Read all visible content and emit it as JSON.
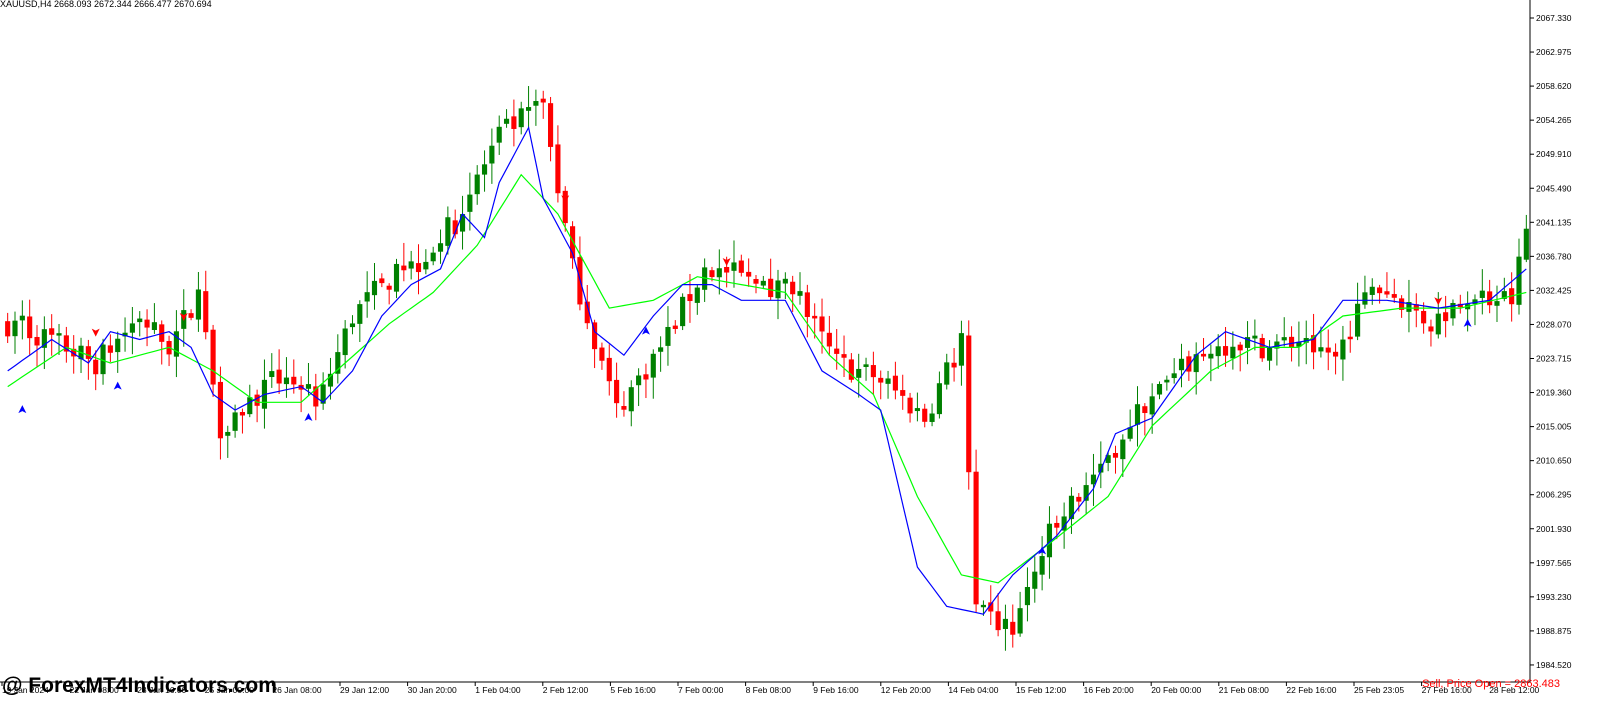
{
  "header": {
    "ohlc_text": "XAUUSD,H4  2668.093 2672.344 2666.477 2670.694"
  },
  "watermark": "@ ForexMT4Indicators.com",
  "status": "Sell, Price Open = 2863.483",
  "colors": {
    "bull": "#008000",
    "bear": "#ff0000",
    "fast_ma": "#0000ff",
    "slow_ma": "#00ff00",
    "buy_arrow": "#0000ff",
    "sell_arrow": "#ff0000",
    "axis": "#000000",
    "background": "#ffffff"
  },
  "chart_data": {
    "type": "candlestick",
    "symbol": "XAUUSD",
    "timeframe": "H4",
    "ylim": [
      1983,
      2069
    ],
    "y_ticks": [
      "2067.330",
      "2062.975",
      "2058.620",
      "2054.265",
      "2049.910",
      "2045.490",
      "2041.135",
      "2036.780",
      "2032.425",
      "2028.070",
      "2023.715",
      "2019.360",
      "2015.005",
      "2010.650",
      "2006.295",
      "2001.930",
      "1997.565",
      "1993.230",
      "1988.875",
      "1984.520"
    ],
    "x_ticks": [
      "19 Jan 2024",
      "22 Jan 08:00",
      "23 Jan 16:00",
      "25 Jan 00:00",
      "26 Jan 08:00",
      "29 Jan 12:00",
      "30 Jan 20:00",
      "1 Feb 04:00",
      "2 Feb 12:00",
      "5 Feb 16:00",
      "7 Feb 00:00",
      "8 Feb 08:00",
      "9 Feb 16:00",
      "12 Feb 20:00",
      "14 Feb 04:00",
      "15 Feb 12:00",
      "16 Feb 20:00",
      "20 Feb 00:00",
      "21 Feb 08:00",
      "22 Feb 16:00",
      "25 Feb 23:05",
      "27 Feb 16:00",
      "28 Feb 12:00"
    ],
    "close_anchors": [
      [
        0,
        2029
      ],
      [
        6,
        2027
      ],
      [
        12,
        2024
      ],
      [
        18,
        2030
      ],
      [
        22,
        2026
      ],
      [
        26,
        2033
      ],
      [
        29,
        2016
      ],
      [
        33,
        2019
      ],
      [
        38,
        2023
      ],
      [
        42,
        2018
      ],
      [
        47,
        2030
      ],
      [
        51,
        2034
      ],
      [
        56,
        2037
      ],
      [
        61,
        2042
      ],
      [
        67,
        2053
      ],
      [
        73,
        2057
      ],
      [
        77,
        2036
      ],
      [
        83,
        2018
      ],
      [
        89,
        2026
      ],
      [
        95,
        2036
      ],
      [
        101,
        2035
      ],
      [
        107,
        2033
      ],
      [
        113,
        2024
      ],
      [
        119,
        2022
      ],
      [
        125,
        2017
      ],
      [
        130,
        2027
      ],
      [
        132,
        1992
      ],
      [
        137,
        1990
      ],
      [
        142,
        2002
      ],
      [
        148,
        2010
      ],
      [
        155,
        2019
      ],
      [
        161,
        2024
      ],
      [
        167,
        2027
      ],
      [
        172,
        2026
      ],
      [
        176,
        2027
      ],
      [
        181,
        2025
      ],
      [
        186,
        2034
      ],
      [
        190,
        2032
      ],
      [
        194,
        2029
      ],
      [
        199,
        2033
      ],
      [
        205,
        2032
      ],
      [
        207,
        2041
      ]
    ],
    "fast_ma_anchors": [
      [
        0,
        2023
      ],
      [
        6,
        2027
      ],
      [
        11,
        2024
      ],
      [
        14,
        2028
      ],
      [
        18,
        2027
      ],
      [
        22,
        2028
      ],
      [
        25,
        2026
      ],
      [
        28,
        2020
      ],
      [
        31,
        2018
      ],
      [
        35,
        2020
      ],
      [
        40,
        2021
      ],
      [
        43,
        2019
      ],
      [
        47,
        2023
      ],
      [
        51,
        2030
      ],
      [
        55,
        2034
      ],
      [
        59,
        2036
      ],
      [
        62,
        2043
      ],
      [
        65,
        2040
      ],
      [
        67,
        2047
      ],
      [
        71,
        2054
      ],
      [
        73,
        2045
      ],
      [
        77,
        2038
      ],
      [
        80,
        2028
      ],
      [
        84,
        2025
      ],
      [
        88,
        2030
      ],
      [
        92,
        2034
      ],
      [
        96,
        2034
      ],
      [
        100,
        2032
      ],
      [
        106,
        2032
      ],
      [
        111,
        2023
      ],
      [
        116,
        2020
      ],
      [
        119,
        2018
      ],
      [
        120,
        2014
      ],
      [
        124,
        1998
      ],
      [
        128,
        1993
      ],
      [
        133,
        1992
      ],
      [
        137,
        1997
      ],
      [
        143,
        2002
      ],
      [
        148,
        2008
      ],
      [
        151,
        2015
      ],
      [
        156,
        2017
      ],
      [
        162,
        2025
      ],
      [
        166,
        2028
      ],
      [
        172,
        2026
      ],
      [
        178,
        2027
      ],
      [
        182,
        2032
      ],
      [
        188,
        2032
      ],
      [
        195,
        2031
      ],
      [
        202,
        2032
      ],
      [
        207,
        2036
      ]
    ],
    "slow_ma_anchors": [
      [
        0,
        2021
      ],
      [
        8,
        2026
      ],
      [
        14,
        2024
      ],
      [
        22,
        2026
      ],
      [
        28,
        2023
      ],
      [
        34,
        2019
      ],
      [
        40,
        2019
      ],
      [
        46,
        2024
      ],
      [
        52,
        2029
      ],
      [
        58,
        2033
      ],
      [
        64,
        2039
      ],
      [
        70,
        2048
      ],
      [
        75,
        2043
      ],
      [
        82,
        2031
      ],
      [
        88,
        2032
      ],
      [
        94,
        2035
      ],
      [
        100,
        2034
      ],
      [
        106,
        2033
      ],
      [
        112,
        2025
      ],
      [
        118,
        2020
      ],
      [
        124,
        2007
      ],
      [
        130,
        1997
      ],
      [
        135,
        1996
      ],
      [
        142,
        2001
      ],
      [
        150,
        2007
      ],
      [
        156,
        2016
      ],
      [
        164,
        2023
      ],
      [
        170,
        2026
      ],
      [
        176,
        2026
      ],
      [
        182,
        2030
      ],
      [
        190,
        2031
      ],
      [
        198,
        2031
      ],
      [
        207,
        2033
      ]
    ],
    "buy_arrows": [
      [
        2,
        2018
      ],
      [
        15,
        2021
      ],
      [
        41,
        2017
      ],
      [
        87,
        2028
      ],
      [
        141,
        2000
      ],
      [
        199,
        2029
      ]
    ],
    "sell_arrows": [
      [
        12,
        2028
      ],
      [
        24,
        2030
      ],
      [
        76,
        2045
      ],
      [
        98,
        2037
      ],
      [
        195,
        2032
      ]
    ]
  }
}
